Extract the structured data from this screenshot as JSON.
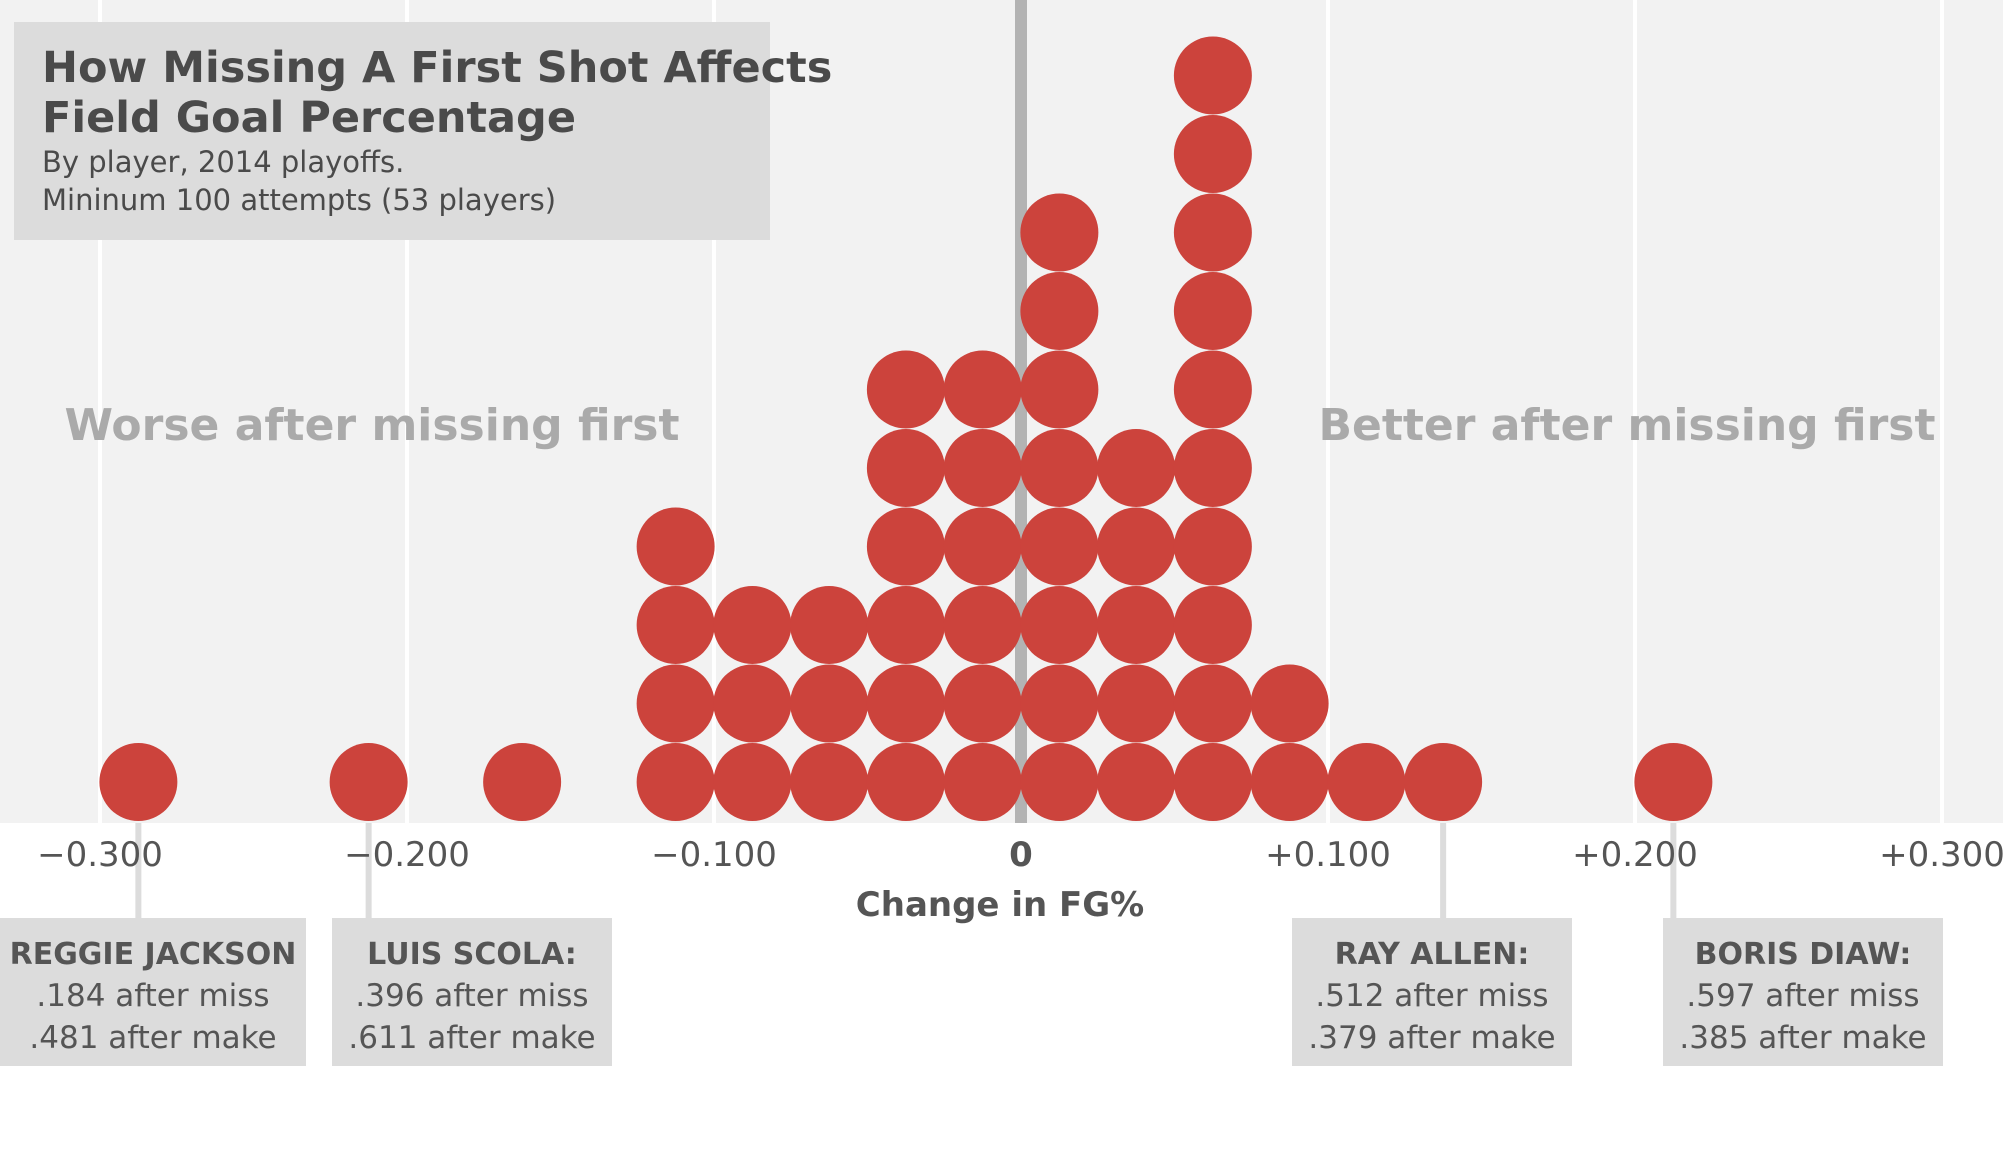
{
  "chart_data": {
    "type": "scatter",
    "subtype": "dot-histogram",
    "title": "How Missing A First Shot Affects Field Goal Percentage",
    "title_lines": [
      "How Missing A First Shot Affects",
      "Field Goal Percentage"
    ],
    "subtitle_lines": [
      "By player, 2014 playoffs.",
      "Mininum 100 attempts (53 players)"
    ],
    "xlabel": "Change in FG%",
    "xlim": [
      -0.3,
      0.3
    ],
    "x_ticks": [
      {
        "value": -0.3,
        "label": "−0.300"
      },
      {
        "value": -0.2,
        "label": "−0.200"
      },
      {
        "value": -0.1,
        "label": "−0.100"
      },
      {
        "value": 0,
        "label": "0"
      },
      {
        "value": 0.1,
        "label": "+0.100"
      },
      {
        "value": 0.2,
        "label": "+0.200"
      },
      {
        "value": 0.3,
        "label": "+0.300"
      }
    ],
    "bin_width": 0.025,
    "bins": [
      {
        "x": -0.2875,
        "count": 1
      },
      {
        "x": -0.2125,
        "count": 1
      },
      {
        "x": -0.1625,
        "count": 1
      },
      {
        "x": -0.1125,
        "count": 4
      },
      {
        "x": -0.0875,
        "count": 3
      },
      {
        "x": -0.0625,
        "count": 3
      },
      {
        "x": -0.0375,
        "count": 6
      },
      {
        "x": -0.0125,
        "count": 6
      },
      {
        "x": 0.0125,
        "count": 8
      },
      {
        "x": 0.0375,
        "count": 5
      },
      {
        "x": 0.0625,
        "count": 10
      },
      {
        "x": 0.0875,
        "count": 2
      },
      {
        "x": 0.1125,
        "count": 1
      },
      {
        "x": 0.1375,
        "count": 1
      },
      {
        "x": 0.2125,
        "count": 1
      }
    ],
    "regions": {
      "left": "Worse after missing first",
      "right": "Better after missing first"
    },
    "callouts": [
      {
        "name": "REGGIE JACKSON",
        "line1": ".184 after miss",
        "line2": ".481 after make",
        "x": -0.2875
      },
      {
        "name": "LUIS SCOLA:",
        "line1": ".396 after miss",
        "line2": ".611 after make",
        "x": -0.2125
      },
      {
        "name": "RAY ALLEN:",
        "line1": ".512 after miss",
        "line2": ".379 after make",
        "x": 0.1375
      },
      {
        "name": "BORIS DIAW:",
        "line1": ".597 after miss",
        "line2": ".385 after make",
        "x": 0.2125
      }
    ],
    "grid": true,
    "colors": {
      "dot": "#cc433c",
      "plot_background": "#f2f2f2",
      "gridline": "#ffffff",
      "zero_line": "#b3b3b3",
      "box": "#dcdcdc",
      "region_text": "#aaaaaa",
      "text": "#555555"
    }
  }
}
